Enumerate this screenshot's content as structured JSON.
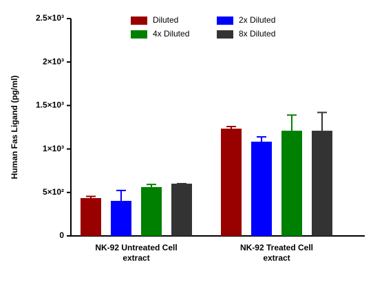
{
  "chart_data": {
    "type": "bar",
    "y_label": "Human Fas Ligand (pg/ml)",
    "categories": [
      "NK-92 Untreated Cell extract",
      "NK-92 Treated Cell extract"
    ],
    "series": [
      {
        "name": "Diluted",
        "color": "#990000",
        "values": [
          435,
          1234
        ],
        "errors": [
          20,
          24
        ]
      },
      {
        "name": "2x Diluted",
        "color": "#0000ff",
        "values": [
          403,
          1084
        ],
        "errors": [
          120,
          55
        ]
      },
      {
        "name": "4x Diluted",
        "color": "#008000",
        "values": [
          562,
          1210
        ],
        "errors": [
          30,
          180
        ]
      },
      {
        "name": "8x Diluted",
        "color": "#333333",
        "values": [
          601,
          1210
        ],
        "errors": [
          0,
          210
        ]
      }
    ],
    "ylim": [
      0,
      2500
    ],
    "yticks": [
      0,
      {
        "value": 500,
        "label": "5×10²"
      },
      {
        "value": 1000,
        "label": "1×10³"
      },
      {
        "value": 1500,
        "label": "1.5×10³"
      },
      {
        "value": 2000,
        "label": "2×10³"
      },
      {
        "value": 2500,
        "label": "2.5×10³"
      }
    ],
    "grid": false,
    "legend_position": "top"
  }
}
